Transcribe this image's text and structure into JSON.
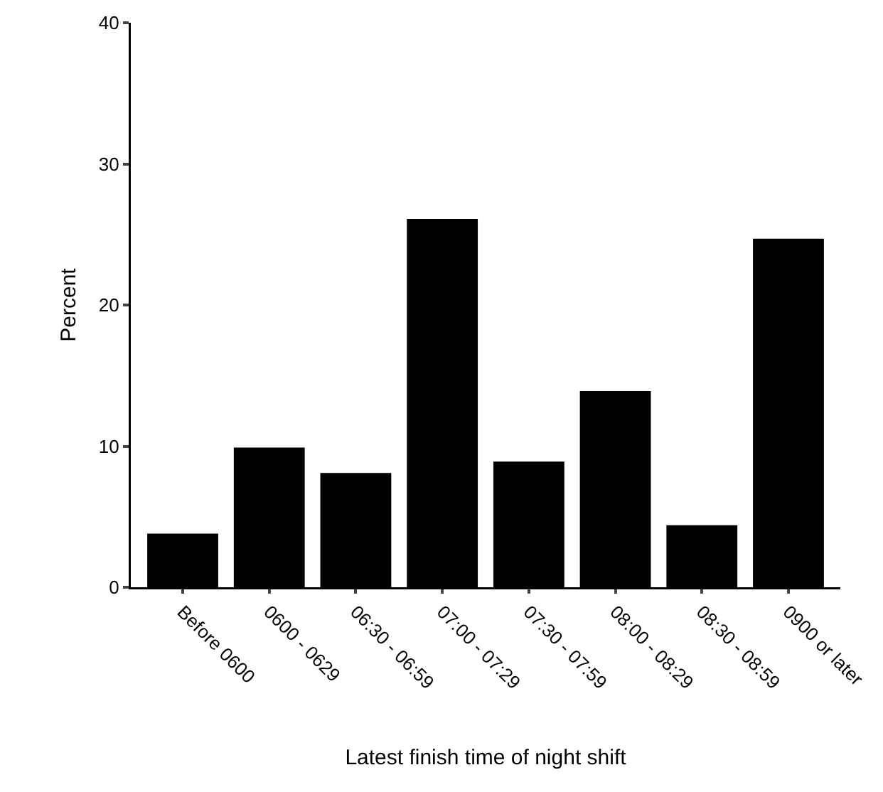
{
  "chart_data": {
    "type": "bar",
    "xlabel": "Latest finish time of night shift",
    "ylabel": "Percent",
    "categories": [
      "Before 0600",
      "0600 - 0629",
      "06:30 - 06:59",
      "07:00 - 07:29",
      "07:30 - 07:59",
      "08:00 - 08:29",
      "08:30 - 08:59",
      "0900 or later"
    ],
    "values": [
      3.8,
      9.9,
      8.1,
      26.1,
      8.9,
      13.9,
      4.4,
      24.7
    ],
    "color": "#000000",
    "ylim": [
      0,
      40
    ],
    "yticks": [
      0,
      10,
      20,
      30,
      40
    ],
    "grid": false,
    "legend": false
  }
}
